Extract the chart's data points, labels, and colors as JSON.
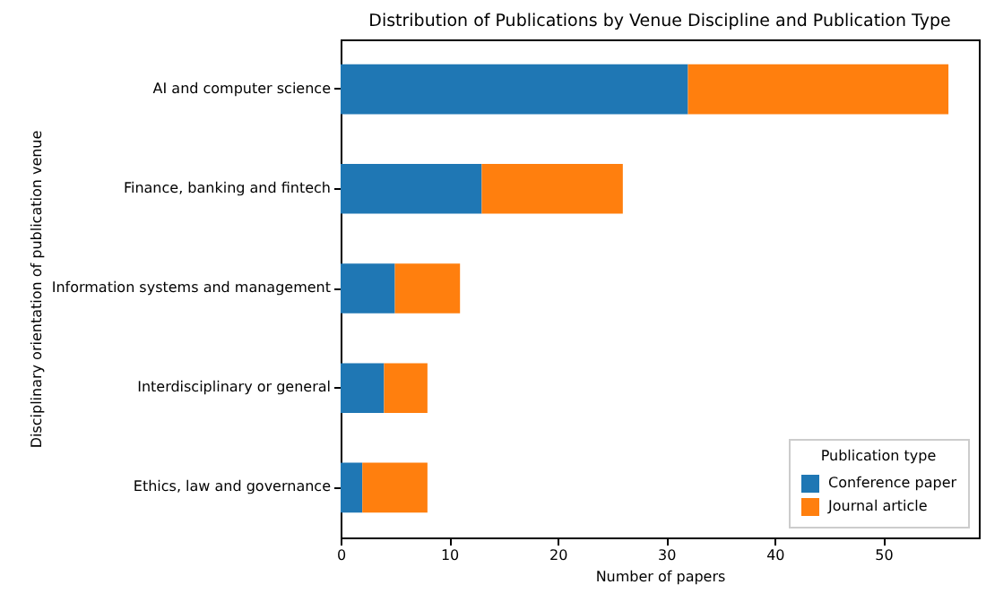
{
  "chart_data": {
    "type": "bar",
    "orientation": "horizontal",
    "stacked": true,
    "title": "Distribution of Publications by Venue Discipline and Publication Type",
    "xlabel": "Number of papers",
    "ylabel": "Disciplinary orientation of publication venue",
    "legend_title": "Publication type",
    "categories": [
      "AI and computer science",
      "Finance, banking and fintech",
      "Information systems and management",
      "Interdisciplinary or general",
      "Ethics, law and governance"
    ],
    "series": [
      {
        "name": "Conference paper",
        "color": "#1f77b4",
        "values": [
          32,
          13,
          5,
          4,
          2
        ]
      },
      {
        "name": "Journal article",
        "color": "#ff7f0e",
        "values": [
          24,
          13,
          6,
          4,
          6
        ]
      }
    ],
    "xlim": [
      0,
      58.8
    ],
    "xticks": [
      0,
      10,
      20,
      30,
      40,
      50
    ],
    "grid": false,
    "legend": "bottom right"
  }
}
